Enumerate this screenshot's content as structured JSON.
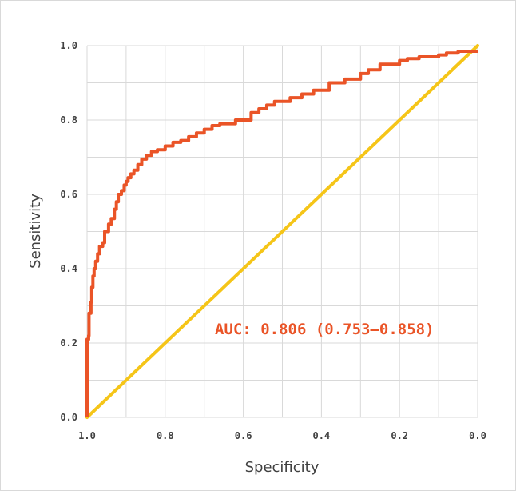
{
  "chart_data": {
    "type": "line",
    "title": "",
    "xlabel": "Specificity",
    "ylabel": "Sensitivity",
    "xlim": [
      1.0,
      0.0
    ],
    "ylim": [
      0.0,
      1.0
    ],
    "x_ticks": [
      "1.0",
      "0.8",
      "0.6",
      "0.4",
      "0.2",
      "0.0"
    ],
    "y_ticks": [
      "0.0",
      "0.2",
      "0.4",
      "0.6",
      "0.8",
      "1.0"
    ],
    "grid": true,
    "legend": "none",
    "annotation": "AUC: 0.806 (0.753–0.858)",
    "colors": {
      "roc": "#ea5427",
      "reference": "#f5c518",
      "grid": "#d9d9d9",
      "text": "#404040"
    },
    "series": [
      {
        "specificity": [
          1.0,
          1.0,
          0.996,
          0.995,
          0.99,
          0.988,
          0.985,
          0.982,
          0.978,
          0.973,
          0.968,
          0.96,
          0.955,
          0.945,
          0.938,
          0.93,
          0.925,
          0.92,
          0.912,
          0.905,
          0.9,
          0.895,
          0.888,
          0.88,
          0.87,
          0.86,
          0.848,
          0.835,
          0.82,
          0.8,
          0.78,
          0.76,
          0.74,
          0.72,
          0.7,
          0.68,
          0.66,
          0.62,
          0.58,
          0.56,
          0.54,
          0.52,
          0.48,
          0.45,
          0.42,
          0.38,
          0.34,
          0.3,
          0.28,
          0.25,
          0.2,
          0.18,
          0.15,
          0.1,
          0.08,
          0.05,
          0.03,
          0.0
        ],
        "sensitivity": [
          0.0,
          0.16,
          0.21,
          0.22,
          0.28,
          0.31,
          0.35,
          0.38,
          0.4,
          0.42,
          0.44,
          0.46,
          0.47,
          0.5,
          0.52,
          0.535,
          0.56,
          0.58,
          0.6,
          0.61,
          0.625,
          0.635,
          0.645,
          0.655,
          0.665,
          0.68,
          0.695,
          0.705,
          0.715,
          0.72,
          0.73,
          0.74,
          0.745,
          0.755,
          0.765,
          0.775,
          0.785,
          0.79,
          0.8,
          0.82,
          0.83,
          0.84,
          0.85,
          0.86,
          0.87,
          0.88,
          0.9,
          0.91,
          0.925,
          0.935,
          0.95,
          0.96,
          0.965,
          0.97,
          0.975,
          0.98,
          0.985,
          0.985
        ]
      },
      {
        "specificity": [
          1.0,
          0.0
        ],
        "sensitivity": [
          0.0,
          1.0
        ]
      }
    ]
  }
}
